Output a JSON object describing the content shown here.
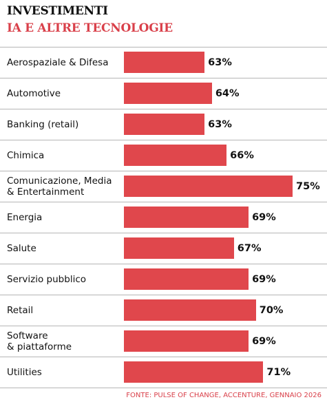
{
  "chart_data": {
    "type": "bar",
    "orientation": "horizontal",
    "title": "INVESTIMENTI",
    "subtitle": "IA E ALTRE TECNOLOGIE",
    "categories": [
      "Aerospaziale & Difesa",
      "Automotive",
      "Banking (retail)",
      "Chimica",
      "Comunicazione, Media\n& Entertainment",
      "Energia",
      "Salute",
      "Servizio pubblico",
      "Retail",
      "Software\n& piattaforme",
      "Utilities"
    ],
    "values": [
      63,
      64,
      63,
      66,
      75,
      69,
      67,
      69,
      70,
      69,
      71
    ],
    "value_labels": [
      "63%",
      "64%",
      "63%",
      "66%",
      "75%",
      "69%",
      "67%",
      "69%",
      "70%",
      "69%",
      "71%"
    ],
    "color": "#e0474c",
    "xlim": [
      52,
      76.5
    ],
    "source": "FONTE: PULSE OF CHANGE, ACCENTURE, GENNAIO 2026"
  }
}
